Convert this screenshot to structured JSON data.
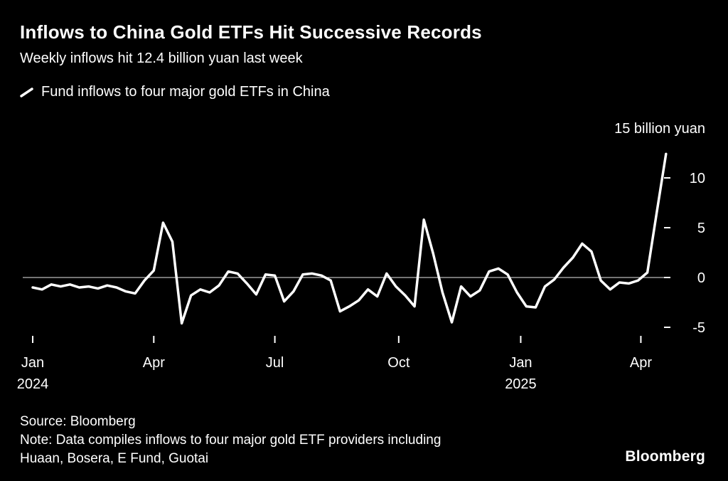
{
  "header": {
    "title": "Inflows to China Gold ETFs Hit Successive Records",
    "subtitle": "Weekly inflows hit 12.4 billion yuan last week"
  },
  "legend": {
    "label": "Fund inflows to four major gold ETFs in China"
  },
  "chart_data": {
    "type": "line",
    "title": "Inflows to China Gold ETFs Hit Successive Records",
    "subtitle": "Weekly inflows hit 12.4 billion yuan last week",
    "series_name": "Fund inflows to four major gold ETFs in China",
    "unit_label": "15 billion yuan",
    "frequency": "weekly",
    "x_start": "Jan 2024",
    "x_end": "Apr 2025",
    "values": [
      -1.0,
      -1.2,
      -0.7,
      -0.9,
      -0.7,
      -1.0,
      -0.9,
      -1.1,
      -0.8,
      -1.0,
      -1.4,
      -1.6,
      -0.3,
      0.7,
      5.5,
      3.6,
      -4.6,
      -1.8,
      -1.2,
      -1.5,
      -0.8,
      0.6,
      0.4,
      -0.6,
      -1.7,
      0.3,
      0.2,
      -2.4,
      -1.4,
      0.3,
      0.4,
      0.2,
      -0.3,
      -3.4,
      -2.9,
      -2.3,
      -1.2,
      -1.9,
      0.4,
      -0.9,
      -1.8,
      -2.9,
      5.8,
      2.4,
      -1.5,
      -4.5,
      -0.9,
      -1.9,
      -1.3,
      0.6,
      0.9,
      0.3,
      -1.5,
      -2.9,
      -3.0,
      -0.9,
      -0.2,
      1.0,
      2.0,
      3.4,
      2.6,
      -0.3,
      -1.2,
      -0.5,
      -0.6,
      -0.3,
      0.5,
      6.5,
      12.4
    ],
    "y_ticks": [
      10,
      5,
      0,
      -5
    ],
    "ylim": [
      -7,
      15
    ],
    "x_ticks": [
      {
        "label": "Jan",
        "year": "2024",
        "pos": 0
      },
      {
        "label": "Apr",
        "pos": 13
      },
      {
        "label": "Jul",
        "pos": 26
      },
      {
        "label": "Oct",
        "pos": 39.3
      },
      {
        "label": "Jan",
        "year": "2025",
        "pos": 52.4
      },
      {
        "label": "Apr",
        "pos": 65.3
      }
    ],
    "grid": "zero-line-only",
    "legend_position": "top-left",
    "line_color": "#ffffff",
    "axis_color": "#e8e8e8",
    "background": "#000000"
  },
  "footer": {
    "source": "Source: Bloomberg",
    "note_lines": [
      "Note: Data compiles inflows to four major gold ETF providers including",
      "Huaan, Bosera, E Fund, Guotai"
    ],
    "logo": "Bloomberg"
  }
}
